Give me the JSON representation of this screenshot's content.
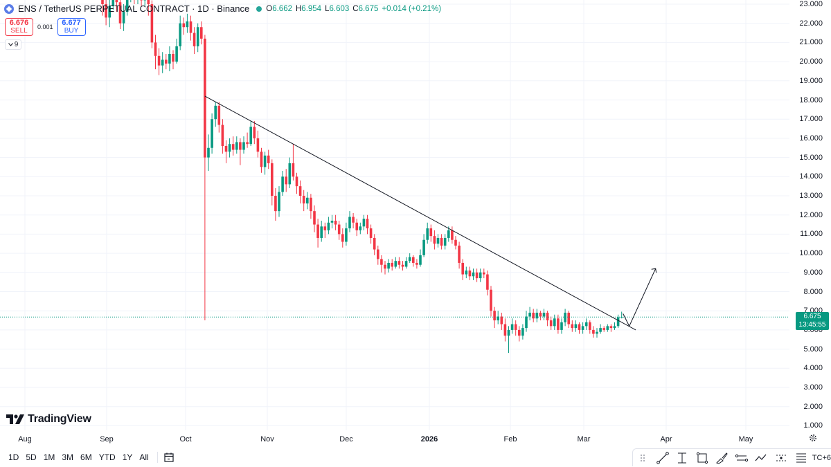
{
  "legend": {
    "title": "ENS / TetherUS PERPETUAL CONTRACT · 1D · Binance",
    "ohlc": {
      "o_label": "O",
      "o": "6.662",
      "h_label": "H",
      "h": "6.954",
      "l_label": "L",
      "l": "6.603",
      "c_label": "C",
      "c": "6.675",
      "change": "+0.014 (+0.21%)"
    }
  },
  "trade": {
    "sell_price": "6.676",
    "sell_label": "SELL",
    "spread": "0.001",
    "buy_price": "6.677",
    "buy_label": "BUY"
  },
  "indicators_count": "9",
  "logo_text": "TradingView",
  "price_axis": [
    "23.000",
    "22.000",
    "21.000",
    "20.000",
    "19.000",
    "18.000",
    "17.000",
    "16.000",
    "15.000",
    "14.000",
    "13.000",
    "12.000",
    "11.000",
    "10.000",
    "9.000",
    "8.000",
    "7.000",
    "6.000",
    "5.000",
    "4.000",
    "3.000",
    "2.000",
    "1.000"
  ],
  "current_price": "6.675",
  "countdown": "13:45:55",
  "time_axis": [
    {
      "label": "Aug"
    },
    {
      "label": "Sep"
    },
    {
      "label": "Oct"
    },
    {
      "label": "Nov"
    },
    {
      "label": "Dec"
    },
    {
      "label": "2026",
      "bold": true
    },
    {
      "label": "Feb"
    },
    {
      "label": "Mar"
    },
    {
      "label": "Apr"
    },
    {
      "label": "May"
    }
  ],
  "ranges": [
    "1D",
    "5D",
    "1M",
    "3M",
    "6M",
    "YTD",
    "1Y",
    "All"
  ],
  "timezone": "TC+6",
  "colors": {
    "up": "#089981",
    "down": "#f23645",
    "accent": "#2962ff"
  },
  "chart_data": {
    "type": "candlestick",
    "price_range": [
      0.5,
      23.3
    ],
    "trendline": {
      "from": 18.2,
      "to": 6.0
    },
    "projection": [
      6.2,
      9.2
    ],
    "current_price": 6.675,
    "candles": [
      [
        23.5,
        23.0,
        23.8,
        22.4
      ],
      [
        23.0,
        22.3,
        23.4,
        21.9
      ],
      [
        22.3,
        22.9,
        23.3,
        21.8
      ],
      [
        22.9,
        23.6,
        23.9,
        22.7
      ],
      [
        23.6,
        23.1,
        23.9,
        22.6
      ],
      [
        23.1,
        22.0,
        23.3,
        21.7
      ],
      [
        22.0,
        22.6,
        23.0,
        21.6
      ],
      [
        22.6,
        23.4,
        23.8,
        22.4
      ],
      [
        23.4,
        23.9,
        24.2,
        23.1
      ],
      [
        23.9,
        23.3,
        24.1,
        23.0
      ],
      [
        23.3,
        23.7,
        24.0,
        23.0
      ],
      [
        23.7,
        23.2,
        23.9,
        22.9
      ],
      [
        23.2,
        23.6,
        23.9,
        22.9
      ],
      [
        23.6,
        23.0,
        23.8,
        22.4
      ],
      [
        23.0,
        21.0,
        23.2,
        20.7
      ],
      [
        21.0,
        20.3,
        21.4,
        19.6
      ],
      [
        20.3,
        19.8,
        20.7,
        19.3
      ],
      [
        19.8,
        20.1,
        20.5,
        19.4
      ],
      [
        20.1,
        19.9,
        20.4,
        19.6
      ],
      [
        19.9,
        20.4,
        20.8,
        19.5
      ],
      [
        20.4,
        20.0,
        20.6,
        19.6
      ],
      [
        20.0,
        20.8,
        21.2,
        19.9
      ],
      [
        20.8,
        22.0,
        22.4,
        20.6
      ],
      [
        22.0,
        21.8,
        22.3,
        21.4
      ],
      [
        21.8,
        22.1,
        22.5,
        21.5
      ],
      [
        22.1,
        21.5,
        22.4,
        21.1
      ],
      [
        21.5,
        20.8,
        21.8,
        20.4
      ],
      [
        20.8,
        21.8,
        22.0,
        20.5
      ],
      [
        21.8,
        21.2,
        22.1,
        20.9
      ],
      [
        21.2,
        15.0,
        21.4,
        6.5
      ],
      [
        15.0,
        15.5,
        16.2,
        14.3
      ],
      [
        15.5,
        17.0,
        17.3,
        15.2
      ],
      [
        17.0,
        17.7,
        17.9,
        16.6
      ],
      [
        17.7,
        16.7,
        17.9,
        16.3
      ],
      [
        16.7,
        15.6,
        17.0,
        15.2
      ],
      [
        15.6,
        15.3,
        15.9,
        14.7
      ],
      [
        15.3,
        15.7,
        16.0,
        15.0
      ],
      [
        15.7,
        15.4,
        16.1,
        15.1
      ],
      [
        15.4,
        15.8,
        16.1,
        15.2
      ],
      [
        15.8,
        15.4,
        16.0,
        14.6
      ],
      [
        15.4,
        15.8,
        16.1,
        15.2
      ],
      [
        15.8,
        15.7,
        16.3,
        15.5
      ],
      [
        15.7,
        16.6,
        16.9,
        15.6
      ],
      [
        16.6,
        16.0,
        16.9,
        15.7
      ],
      [
        16.0,
        15.3,
        16.4,
        15.0
      ],
      [
        15.3,
        14.5,
        15.5,
        14.2
      ],
      [
        14.5,
        15.1,
        15.3,
        14.1
      ],
      [
        15.1,
        14.7,
        15.4,
        14.4
      ],
      [
        14.7,
        13.0,
        14.9,
        12.5
      ],
      [
        13.0,
        12.2,
        13.4,
        11.7
      ],
      [
        12.2,
        13.2,
        13.5,
        11.9
      ],
      [
        13.2,
        14.0,
        14.3,
        13.0
      ],
      [
        14.0,
        13.6,
        14.4,
        13.2
      ],
      [
        13.6,
        14.7,
        15.0,
        13.4
      ],
      [
        14.7,
        14.0,
        15.7,
        13.8
      ],
      [
        14.0,
        13.5,
        14.2,
        13.1
      ],
      [
        13.5,
        13.0,
        13.8,
        12.6
      ],
      [
        13.0,
        12.6,
        13.3,
        12.2
      ],
      [
        12.6,
        12.9,
        13.2,
        12.3
      ],
      [
        12.9,
        12.2,
        13.1,
        11.8
      ],
      [
        12.2,
        11.5,
        12.5,
        11.1
      ],
      [
        11.5,
        10.8,
        11.8,
        10.3
      ],
      [
        10.8,
        11.4,
        11.7,
        10.6
      ],
      [
        11.4,
        11.2,
        11.6,
        10.8
      ],
      [
        11.2,
        11.6,
        11.9,
        11.0
      ],
      [
        11.6,
        11.7,
        12.0,
        11.3
      ],
      [
        11.7,
        11.5,
        12.0,
        11.2
      ],
      [
        11.5,
        11.0,
        11.7,
        10.7
      ],
      [
        11.0,
        10.6,
        11.3,
        10.3
      ],
      [
        10.6,
        11.3,
        11.6,
        10.4
      ],
      [
        11.3,
        11.9,
        12.2,
        11.1
      ],
      [
        11.9,
        11.6,
        12.1,
        11.3
      ],
      [
        11.6,
        11.2,
        11.8,
        10.9
      ],
      [
        11.2,
        11.4,
        11.6,
        11.0
      ],
      [
        11.4,
        11.8,
        12.0,
        11.2
      ],
      [
        11.8,
        11.3,
        12.0,
        11.0
      ],
      [
        11.3,
        10.8,
        11.5,
        10.5
      ],
      [
        10.8,
        10.2,
        11.0,
        9.9
      ],
      [
        10.2,
        9.7,
        10.4,
        9.4
      ],
      [
        9.7,
        9.4,
        9.9,
        9.0
      ],
      [
        9.4,
        9.2,
        9.6,
        8.9
      ],
      [
        9.2,
        9.5,
        9.7,
        9.0
      ],
      [
        9.5,
        9.3,
        9.7,
        9.1
      ],
      [
        9.3,
        9.6,
        9.8,
        9.2
      ],
      [
        9.6,
        9.4,
        9.8,
        9.2
      ],
      [
        9.4,
        9.3,
        9.6,
        9.1
      ],
      [
        9.3,
        9.6,
        9.8,
        9.2
      ],
      [
        9.6,
        9.8,
        10.0,
        9.5
      ],
      [
        9.8,
        9.5,
        9.9,
        9.3
      ],
      [
        9.5,
        9.4,
        9.7,
        9.2
      ],
      [
        9.4,
        9.9,
        10.2,
        9.3
      ],
      [
        9.9,
        10.7,
        11.0,
        9.8
      ],
      [
        10.7,
        11.3,
        11.6,
        10.5
      ],
      [
        11.3,
        10.9,
        11.5,
        10.6
      ],
      [
        10.9,
        10.5,
        11.2,
        10.2
      ],
      [
        10.5,
        10.8,
        11.0,
        10.3
      ],
      [
        10.8,
        10.4,
        11.0,
        10.2
      ],
      [
        10.4,
        10.8,
        11.0,
        10.2
      ],
      [
        10.8,
        11.2,
        11.4,
        10.6
      ],
      [
        11.2,
        10.7,
        11.4,
        10.5
      ],
      [
        10.7,
        10.4,
        10.9,
        10.2
      ],
      [
        10.4,
        9.5,
        10.6,
        9.2
      ],
      [
        9.5,
        8.9,
        9.7,
        8.6
      ],
      [
        8.9,
        9.1,
        9.3,
        8.7
      ],
      [
        9.1,
        8.8,
        9.3,
        8.6
      ],
      [
        8.8,
        9.0,
        9.2,
        8.6
      ],
      [
        9.0,
        8.7,
        9.2,
        8.5
      ],
      [
        8.7,
        9.0,
        9.2,
        8.5
      ],
      [
        9.0,
        8.9,
        9.2,
        8.7
      ],
      [
        8.9,
        8.1,
        9.1,
        7.8
      ],
      [
        8.1,
        7.0,
        8.3,
        6.7
      ],
      [
        7.0,
        6.5,
        7.2,
        6.1
      ],
      [
        6.5,
        6.7,
        7.0,
        6.3
      ],
      [
        6.7,
        6.3,
        6.9,
        6.0
      ],
      [
        6.3,
        5.7,
        6.6,
        5.4
      ],
      [
        5.7,
        6.0,
        6.2,
        4.8
      ],
      [
        6.0,
        6.3,
        6.6,
        5.8
      ],
      [
        6.3,
        6.0,
        6.5,
        5.7
      ],
      [
        6.0,
        5.7,
        6.2,
        5.4
      ],
      [
        5.7,
        6.1,
        6.3,
        5.5
      ],
      [
        6.1,
        6.7,
        7.0,
        5.9
      ],
      [
        6.7,
        6.9,
        7.2,
        6.5
      ],
      [
        6.9,
        6.6,
        7.1,
        6.4
      ],
      [
        6.6,
        6.9,
        7.1,
        6.4
      ],
      [
        6.9,
        6.7,
        7.0,
        6.5
      ],
      [
        6.7,
        6.9,
        7.1,
        6.5
      ],
      [
        6.9,
        6.5,
        7.0,
        6.2
      ],
      [
        6.5,
        6.2,
        6.7,
        6.0
      ],
      [
        6.2,
        6.6,
        6.8,
        6.0
      ],
      [
        6.6,
        6.0,
        6.8,
        5.8
      ],
      [
        6.0,
        6.4,
        6.6,
        5.8
      ],
      [
        6.4,
        6.9,
        7.1,
        6.2
      ],
      [
        6.9,
        6.3,
        7.0,
        6.1
      ],
      [
        6.3,
        6.1,
        6.5,
        5.9
      ],
      [
        6.1,
        6.3,
        6.5,
        5.9
      ],
      [
        6.3,
        6.0,
        6.4,
        5.8
      ],
      [
        6.0,
        6.2,
        6.4,
        5.8
      ],
      [
        6.2,
        6.4,
        6.6,
        6.0
      ],
      [
        6.4,
        6.0,
        6.5,
        5.8
      ],
      [
        6.0,
        5.8,
        6.2,
        5.6
      ],
      [
        5.8,
        5.9,
        6.1,
        5.6
      ],
      [
        5.9,
        6.1,
        6.3,
        5.8
      ],
      [
        6.1,
        6.0,
        6.2,
        5.9
      ],
      [
        6.0,
        6.2,
        6.3,
        5.9
      ],
      [
        6.2,
        6.1,
        6.3,
        5.9
      ],
      [
        6.1,
        6.2,
        6.4,
        6.0
      ],
      [
        6.2,
        6.66,
        6.8,
        6.1
      ],
      [
        6.662,
        6.675,
        6.954,
        6.603
      ]
    ]
  }
}
